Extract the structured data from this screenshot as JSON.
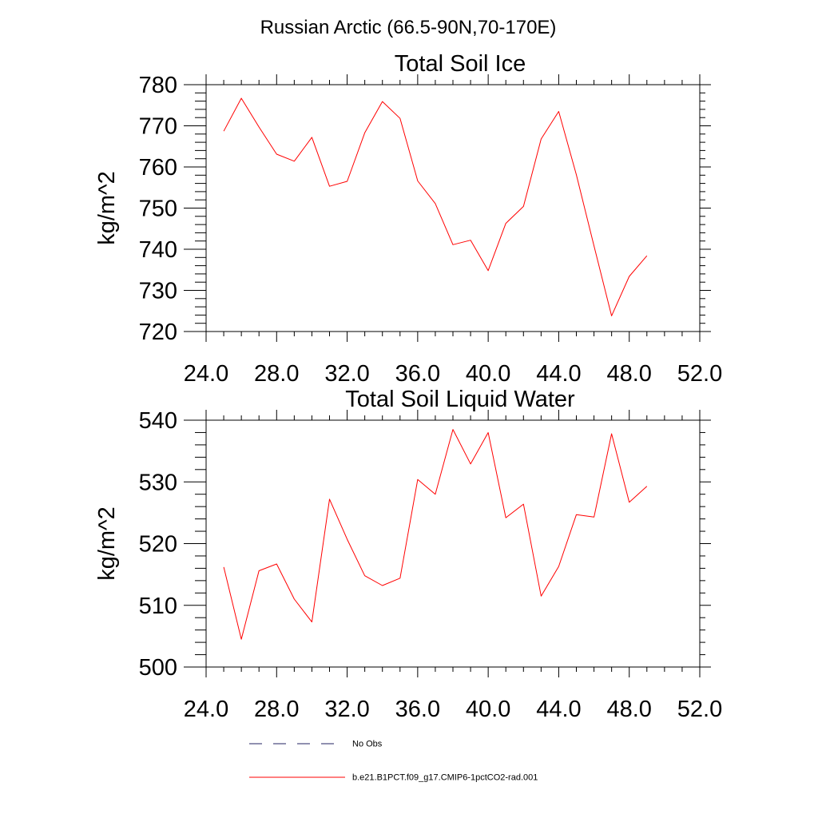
{
  "figure_title": "Russian Arctic (66.5-90N,70-170E)",
  "colors": {
    "model_line": "#ff0000",
    "obs_line": "#202060",
    "axes": "#000000"
  },
  "chart_data": [
    {
      "type": "line",
      "title": "Total Soil Ice",
      "xlabel": "",
      "ylabel": "kg/m^2",
      "xlim": [
        24,
        52
      ],
      "ylim": [
        720,
        780
      ],
      "xticks": [
        24,
        28,
        32,
        36,
        40,
        44,
        48,
        52
      ],
      "xtick_labels": [
        "24.0",
        "28.0",
        "32.0",
        "36.0",
        "40.0",
        "44.0",
        "48.0",
        "52.0"
      ],
      "yticks": [
        720,
        730,
        740,
        750,
        760,
        770,
        780
      ],
      "ytick_labels": [
        "720",
        "730",
        "740",
        "750",
        "760",
        "770",
        "780"
      ],
      "grid": false,
      "x": [
        25,
        26,
        27,
        28,
        29,
        30,
        31,
        32,
        33,
        34,
        35,
        36,
        37,
        38,
        39,
        40,
        41,
        42,
        43,
        44,
        45,
        46,
        47,
        48,
        49
      ],
      "series": [
        {
          "name": "b.e21.B1PCT.f09_g17.CMIP6-1pctCO2-rad.001",
          "values": [
            768.7,
            776.7,
            769.7,
            763.1,
            761.4,
            767.2,
            755.3,
            756.5,
            768.3,
            775.9,
            771.8,
            756.6,
            751.1,
            741.1,
            742.2,
            734.8,
            746.3,
            750.4,
            766.8,
            773.5,
            758.1,
            740.8,
            723.8,
            733.4,
            738.4
          ]
        }
      ]
    },
    {
      "type": "line",
      "title": "Total Soil Liquid Water",
      "xlabel": "",
      "ylabel": "kg/m^2",
      "xlim": [
        24,
        52
      ],
      "ylim": [
        500,
        540
      ],
      "xticks": [
        24,
        28,
        32,
        36,
        40,
        44,
        48,
        52
      ],
      "xtick_labels": [
        "24.0",
        "28.0",
        "32.0",
        "36.0",
        "40.0",
        "44.0",
        "48.0",
        "52.0"
      ],
      "yticks": [
        500,
        510,
        520,
        530,
        540
      ],
      "ytick_labels": [
        "500",
        "510",
        "520",
        "530",
        "540"
      ],
      "grid": false,
      "x": [
        25,
        26,
        27,
        28,
        29,
        30,
        31,
        32,
        33,
        34,
        35,
        36,
        37,
        38,
        39,
        40,
        41,
        42,
        43,
        44,
        45,
        46,
        47,
        48,
        49
      ],
      "series": [
        {
          "name": "b.e21.B1PCT.f09_g17.CMIP6-1pctCO2-rad.001",
          "values": [
            516.2,
            504.5,
            515.6,
            516.7,
            511.0,
            507.3,
            527.2,
            520.7,
            514.8,
            513.2,
            514.4,
            530.4,
            528.0,
            538.5,
            532.9,
            538.0,
            524.2,
            526.4,
            511.5,
            516.3,
            524.7,
            524.3,
            537.8,
            526.7,
            529.3
          ]
        }
      ]
    }
  ],
  "legend": {
    "placement": "bottom-left",
    "entries": [
      {
        "label": "No Obs",
        "style": "dashed"
      },
      {
        "label": "b.e21.B1PCT.f09_g17.CMIP6-1pctCO2-rad.001",
        "style": "solid"
      }
    ]
  }
}
